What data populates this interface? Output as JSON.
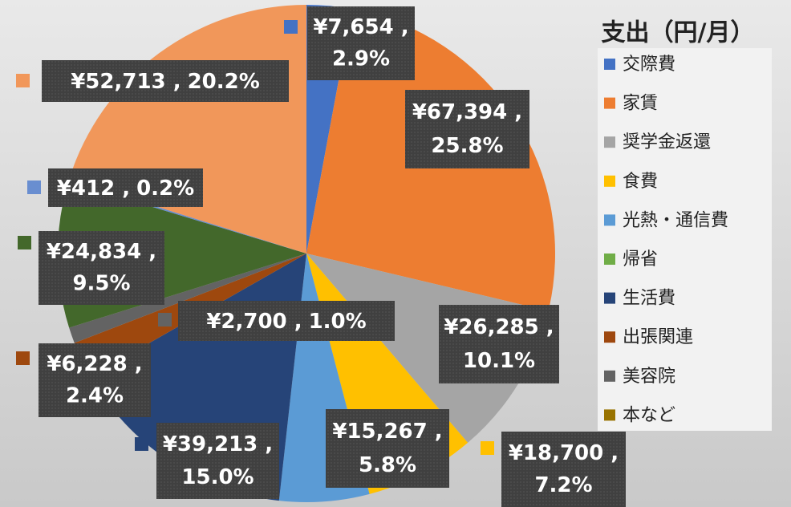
{
  "chart_data": {
    "type": "pie",
    "title": "支出（円/月）",
    "categories": [
      "交際費",
      "家賃",
      "奨学金返還",
      "食費",
      "光熱・通信費",
      "帰省",
      "生活費",
      "出張関連",
      "美容院",
      "本など",
      null,
      null,
      null
    ],
    "values": [
      7654,
      67394,
      26285,
      18700,
      15267,
      0,
      39213,
      6228,
      2700,
      0,
      24834,
      412,
      52713
    ],
    "value_labels": [
      "¥7,654 ,",
      "¥67,394 ,",
      "¥26,285 ,",
      "¥18,700 ,",
      "¥15,267 ,",
      null,
      "¥39,213 ,",
      "¥6,228 ,",
      "¥2,700 ,",
      null,
      "¥24,834 ,",
      "¥412 ,",
      "¥52,713 ,"
    ],
    "percents": [
      2.9,
      25.8,
      10.1,
      7.2,
      5.8,
      null,
      15.0,
      2.4,
      1.0,
      null,
      9.5,
      0.2,
      20.2
    ],
    "percent_labels": [
      "2.9%",
      "25.8%",
      "10.1%",
      "7.2%",
      "5.8%",
      null,
      "15.0%",
      "2.4%",
      "1.0%",
      null,
      "9.5%",
      "0.2%",
      "20.2%"
    ],
    "colors": [
      "#4472c4",
      "#ed7d31",
      "#a5a5a5",
      "#ffc000",
      "#5b9bd5",
      "#70ad47",
      "#264478",
      "#9e480e",
      "#636363",
      "#997300",
      "#43682b",
      "#698ed0",
      "#f1975a"
    ],
    "legend": "right"
  }
}
